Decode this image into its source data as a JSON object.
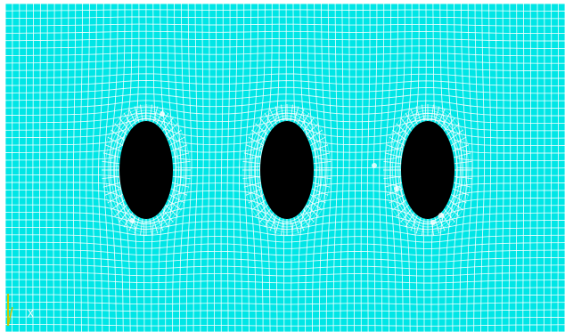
{
  "viewport": {
    "background_color": "#00e6e6",
    "mesh_line_color": "#ffffff",
    "hole_color": "#000000",
    "triad_color": "#c8c800"
  },
  "triad": {
    "axis_label": "X"
  }
}
